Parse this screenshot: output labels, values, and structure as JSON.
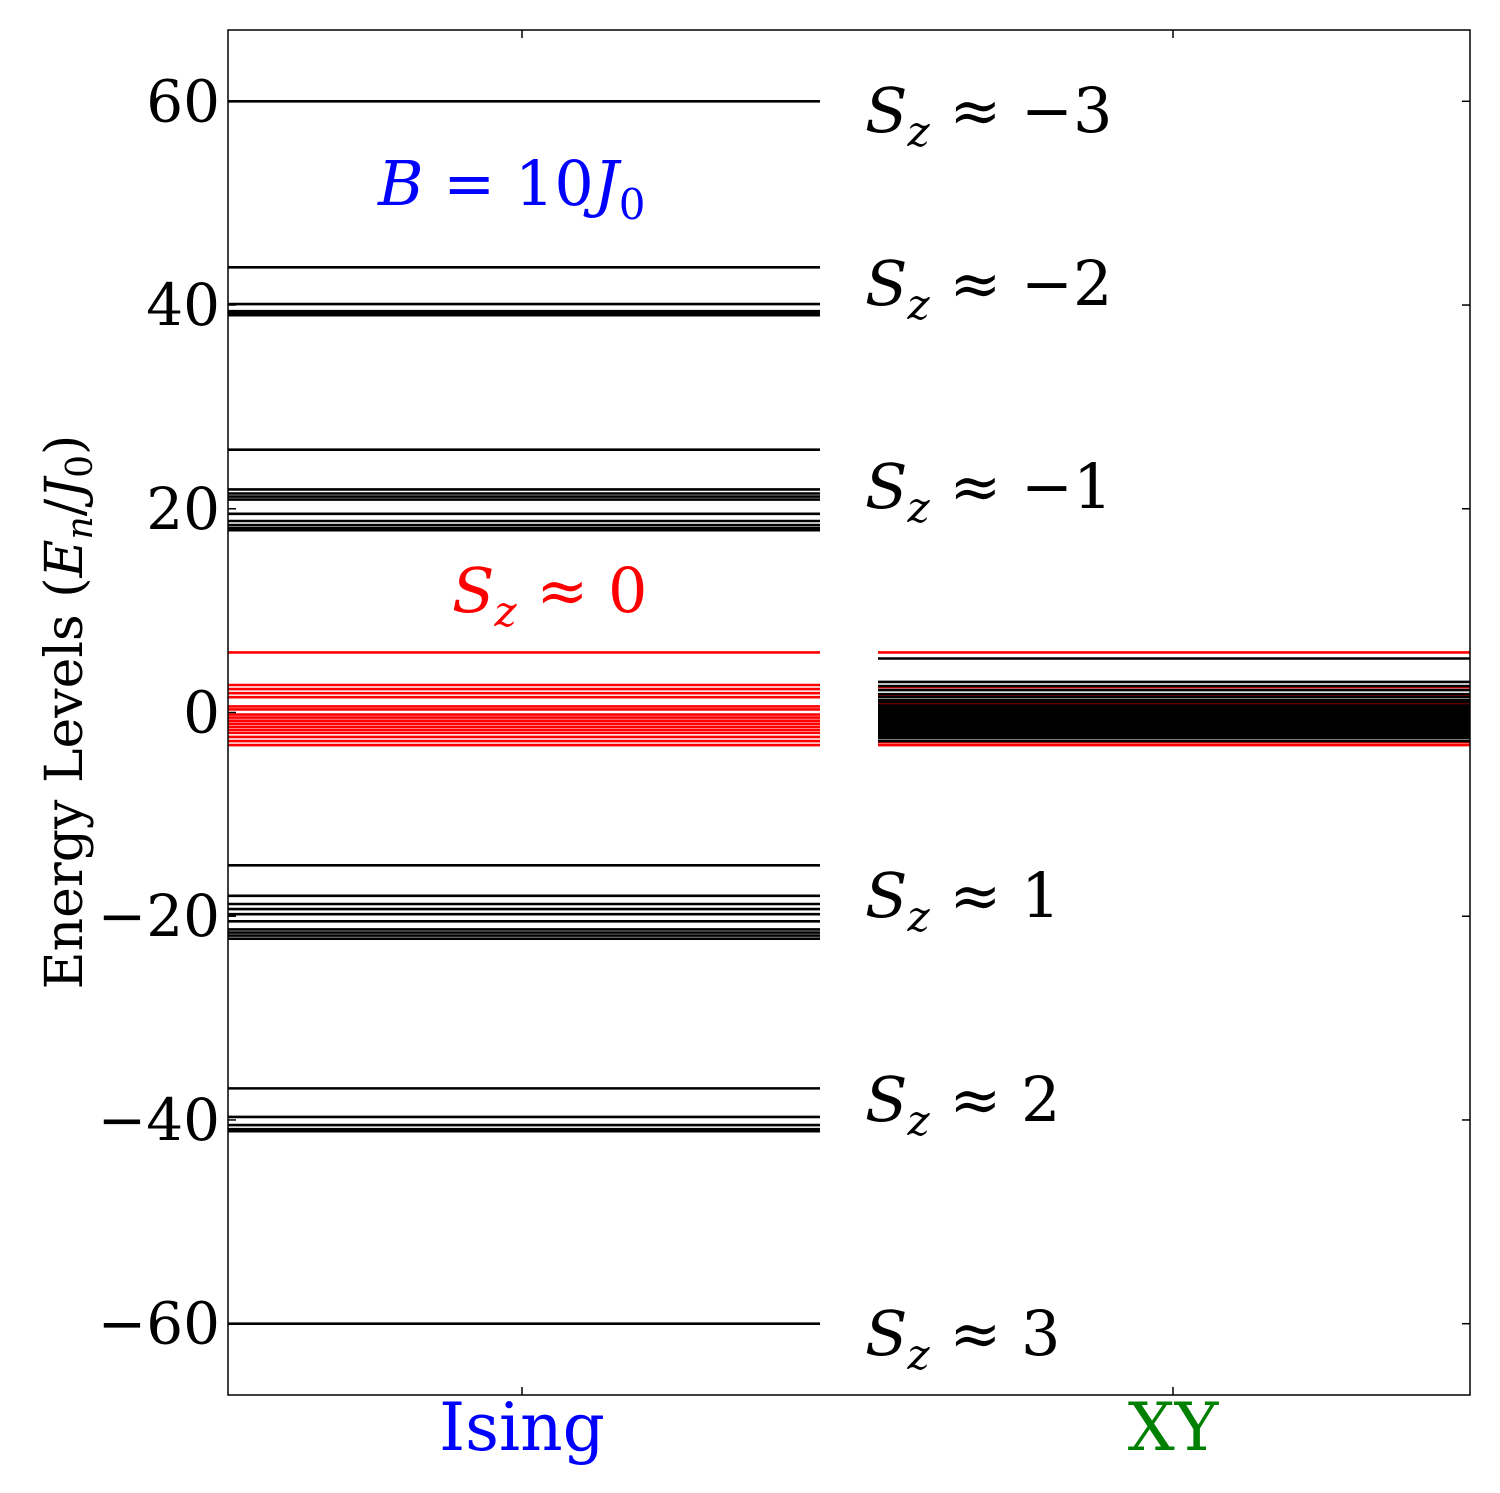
{
  "chart_data": {
    "type": "energy-level",
    "ylabel": "Energy Levels (E_n/J_0)",
    "ylim": [
      -67,
      67
    ],
    "yticks": [
      60,
      40,
      20,
      0,
      -20,
      -40,
      -60
    ],
    "ytick_labels": [
      "60",
      "40",
      "20",
      "0",
      "−20",
      "−40",
      "−60"
    ],
    "categories": [
      "Ising",
      "XY"
    ],
    "category_colors": [
      "#0000ff",
      "#008000"
    ],
    "annotations": {
      "field": "B = 10J_0",
      "field_color": "#0000ff",
      "sz0": "S_z ≈ 0",
      "sz0_color": "#ff0000",
      "bands": [
        "S_z ≈ −3",
        "S_z ≈ −2",
        "S_z ≈ −1",
        "S_z ≈ 1",
        "S_z ≈ 2",
        "S_z ≈ 3"
      ]
    },
    "series": [
      {
        "name": "Ising",
        "levels_black": [
          60,
          43.7,
          40.1,
          39.4,
          39.2,
          39.0,
          25.8,
          21.9,
          21.5,
          21.2,
          20.9,
          19.5,
          18.8,
          18.4,
          18.1,
          17.9,
          -15.0,
          -18.0,
          -18.8,
          -19.3,
          -19.8,
          -20.5,
          -21.3,
          -21.6,
          -21.9,
          -22.2,
          -36.9,
          -39.7,
          -40.5,
          -40.9,
          -41.1,
          -60
        ],
        "levels_red": [
          5.9,
          2.7,
          2.3,
          1.9,
          1.5,
          0.6,
          0.3,
          -0.2,
          -0.5,
          -0.8,
          -1.1,
          -1.4,
          -1.7,
          -2.0,
          -2.4,
          -2.8,
          -3.2
        ]
      },
      {
        "name": "XY",
        "levels_black": [
          5.3,
          3.0,
          2.6,
          2.2,
          1.8,
          1.5,
          1.2,
          1.0,
          0.7,
          0.5,
          0.3,
          0.1,
          -0.1,
          -0.3,
          -0.5,
          -0.7,
          -0.9,
          -1.1,
          -1.3,
          -1.5,
          -1.7,
          -1.9,
          -2.1,
          -2.3,
          -2.5,
          -2.8
        ],
        "levels_red": [
          5.9,
          2.5,
          1.7,
          0.9,
          0.1,
          -0.6,
          -1.2,
          -1.8,
          -2.4,
          -2.9,
          -3.2
        ]
      }
    ]
  }
}
